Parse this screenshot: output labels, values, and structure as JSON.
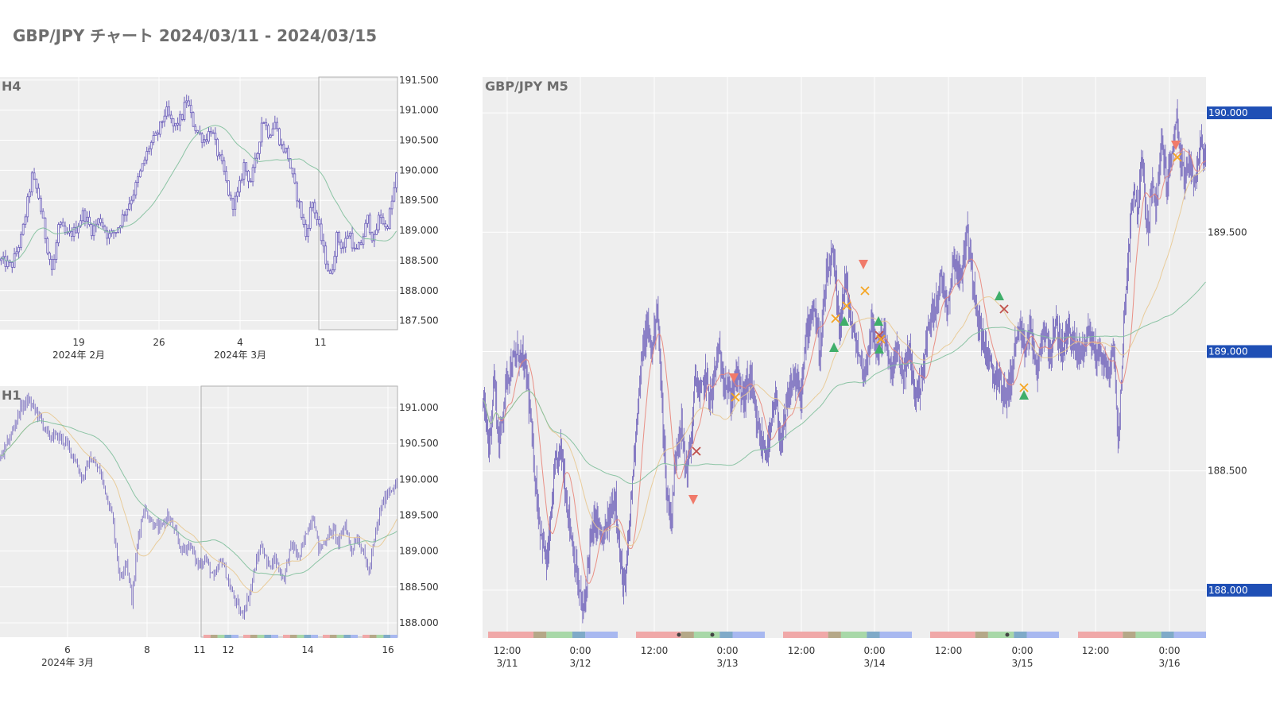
{
  "page": {
    "title": "GBP/JPY チャート 2024/03/11 - 2024/03/15"
  },
  "colors": {
    "candle": "#6a5cb8",
    "plot_bg": "#eeeeee",
    "grid": "#ffffff",
    "ma_fast": "#e8857a",
    "ma_mid": "#e8c890",
    "ma_slow": "#7fbf9b",
    "buy_marker": "#3fae6a",
    "sell_marker": "#f07a6a",
    "exit_marker": "#f5a623",
    "cross_marker": "#c0504d",
    "price_box": "#1f4fb5",
    "session_colors": [
      "#f0a8a8",
      "#b5a888",
      "#a8d8a8",
      "#7faac8",
      "#a8b8f0"
    ]
  },
  "chart_data": [
    {
      "id": "h4",
      "type": "candlestick",
      "title": "H4",
      "x_ticks": [
        "19",
        "26",
        "4",
        "11"
      ],
      "x_ticks_row2": [
        "2024年 2月",
        "2024年 3月"
      ],
      "y_ticks": [
        "191.500",
        "191.000",
        "190.500",
        "190.000",
        "189.500",
        "189.000",
        "188.500",
        "188.000",
        "187.500"
      ],
      "ylim": [
        187.35,
        191.55
      ],
      "highlight_range": [
        "3/11",
        "3/15"
      ],
      "waypoints": [
        [
          0,
          188.5
        ],
        [
          5,
          188.4
        ],
        [
          10,
          188.9
        ],
        [
          15,
          189.9
        ],
        [
          18,
          189.6
        ],
        [
          22,
          188.8
        ],
        [
          25,
          188.3
        ],
        [
          28,
          189.1
        ],
        [
          32,
          188.9
        ],
        [
          36,
          189.0
        ],
        [
          40,
          189.3
        ],
        [
          44,
          189.0
        ],
        [
          48,
          189.2
        ],
        [
          52,
          188.9
        ],
        [
          56,
          189.0
        ],
        [
          60,
          189.3
        ],
        [
          64,
          189.6
        ],
        [
          68,
          190.0
        ],
        [
          72,
          190.4
        ],
        [
          76,
          190.6
        ],
        [
          80,
          191.0
        ],
        [
          84,
          190.7
        ],
        [
          88,
          190.9
        ],
        [
          90,
          191.2
        ],
        [
          93,
          190.8
        ],
        [
          96,
          190.6
        ],
        [
          99,
          190.5
        ],
        [
          102,
          190.7
        ],
        [
          105,
          190.3
        ],
        [
          108,
          190.0
        ],
        [
          112,
          189.4
        ],
        [
          115,
          189.6
        ],
        [
          118,
          190.1
        ],
        [
          121,
          189.8
        ],
        [
          124,
          190.2
        ],
        [
          127,
          190.9
        ],
        [
          130,
          190.6
        ],
        [
          133,
          190.8
        ],
        [
          136,
          190.4
        ],
        [
          139,
          190.3
        ],
        [
          142,
          189.8
        ],
        [
          145,
          189.4
        ],
        [
          148,
          188.9
        ],
        [
          151,
          189.5
        ],
        [
          154,
          189.1
        ],
        [
          157,
          188.6
        ],
        [
          160,
          188.2
        ],
        [
          163,
          188.9
        ],
        [
          166,
          188.7
        ],
        [
          169,
          189.0
        ],
        [
          172,
          188.6
        ],
        [
          175,
          188.8
        ],
        [
          178,
          189.2
        ],
        [
          181,
          188.8
        ],
        [
          184,
          189.3
        ],
        [
          187,
          189.0
        ],
        [
          190,
          189.5
        ],
        [
          192,
          189.9
        ]
      ]
    },
    {
      "id": "h1",
      "type": "candlestick",
      "title": "H1",
      "x_ticks": [
        "6",
        "8",
        "11",
        "12",
        "14",
        "16"
      ],
      "x_ticks_row2": [
        "2024年 3月"
      ],
      "y_ticks": [
        "191.000",
        "190.500",
        "190.000",
        "189.500",
        "189.000",
        "188.500",
        "188.000"
      ],
      "ylim": [
        187.8,
        191.3
      ],
      "highlight_range": [
        "3/11",
        "3/16"
      ],
      "waypoints": [
        [
          0,
          190.3
        ],
        [
          10,
          190.6
        ],
        [
          20,
          191.0
        ],
        [
          28,
          191.1
        ],
        [
          38,
          190.9
        ],
        [
          48,
          190.6
        ],
        [
          58,
          190.6
        ],
        [
          66,
          190.5
        ],
        [
          74,
          190.3
        ],
        [
          82,
          190.0
        ],
        [
          90,
          190.3
        ],
        [
          100,
          190.1
        ],
        [
          106,
          189.8
        ],
        [
          112,
          189.5
        ],
        [
          120,
          188.6
        ],
        [
          126,
          188.9
        ],
        [
          132,
          188.3
        ],
        [
          138,
          189.2
        ],
        [
          144,
          189.6
        ],
        [
          152,
          189.4
        ],
        [
          160,
          189.3
        ],
        [
          168,
          189.5
        ],
        [
          174,
          189.3
        ],
        [
          182,
          189.0
        ],
        [
          190,
          189.1
        ],
        [
          198,
          188.8
        ],
        [
          206,
          188.9
        ],
        [
          214,
          188.6
        ],
        [
          222,
          188.9
        ],
        [
          230,
          188.5
        ],
        [
          236,
          188.3
        ],
        [
          242,
          188.1
        ],
        [
          250,
          188.4
        ],
        [
          256,
          188.8
        ],
        [
          262,
          189.1
        ],
        [
          268,
          188.8
        ],
        [
          276,
          188.9
        ],
        [
          284,
          188.6
        ],
        [
          292,
          189.1
        ],
        [
          300,
          188.9
        ],
        [
          308,
          189.3
        ],
        [
          314,
          189.5
        ],
        [
          320,
          189.0
        ],
        [
          328,
          189.2
        ],
        [
          334,
          189.3
        ],
        [
          340,
          189.1
        ],
        [
          346,
          189.4
        ],
        [
          352,
          189.0
        ],
        [
          358,
          189.2
        ],
        [
          364,
          189.0
        ],
        [
          370,
          188.7
        ],
        [
          376,
          189.2
        ],
        [
          382,
          189.6
        ],
        [
          388,
          189.8
        ],
        [
          394,
          189.9
        ],
        [
          398,
          189.9
        ]
      ]
    },
    {
      "id": "m5",
      "type": "candlestick",
      "title": "GBP/JPY M5",
      "x_ticks": [
        "12:00",
        "0:00",
        "12:00",
        "0:00",
        "12:00",
        "0:00",
        "12:00",
        "0:00",
        "12:00",
        "0:00"
      ],
      "x_ticks_row2": [
        "3/11",
        "3/12",
        "3/13",
        "3/14",
        "3/15",
        "3/16"
      ],
      "y_ticks": [
        "190.000",
        "189.500",
        "189.000",
        "188.500",
        "188.000"
      ],
      "price_boxes": [
        "190.000",
        "189.000",
        "188.000"
      ],
      "ylim": [
        187.8,
        190.15
      ],
      "waypoints": [
        [
          0,
          188.8
        ],
        [
          8,
          188.6
        ],
        [
          14,
          188.9
        ],
        [
          20,
          188.6
        ],
        [
          30,
          188.9
        ],
        [
          45,
          189.0
        ],
        [
          55,
          188.9
        ],
        [
          62,
          188.6
        ],
        [
          70,
          188.3
        ],
        [
          80,
          188.1
        ],
        [
          90,
          188.5
        ],
        [
          98,
          188.6
        ],
        [
          104,
          188.4
        ],
        [
          112,
          188.2
        ],
        [
          120,
          188.0
        ],
        [
          126,
          187.9
        ],
        [
          134,
          188.2
        ],
        [
          142,
          188.3
        ],
        [
          150,
          188.2
        ],
        [
          158,
          188.3
        ],
        [
          166,
          188.4
        ],
        [
          172,
          188.1
        ],
        [
          178,
          188.0
        ],
        [
          184,
          188.3
        ],
        [
          192,
          188.7
        ],
        [
          200,
          189.0
        ],
        [
          206,
          189.1
        ],
        [
          212,
          189.0
        ],
        [
          218,
          189.2
        ],
        [
          224,
          188.8
        ],
        [
          230,
          188.4
        ],
        [
          236,
          188.3
        ],
        [
          242,
          188.6
        ],
        [
          248,
          188.7
        ],
        [
          254,
          188.5
        ],
        [
          260,
          188.6
        ],
        [
          266,
          188.9
        ],
        [
          272,
          188.8
        ],
        [
          278,
          188.9
        ],
        [
          286,
          188.8
        ],
        [
          294,
          189.0
        ],
        [
          302,
          188.9
        ],
        [
          310,
          188.8
        ],
        [
          318,
          188.9
        ],
        [
          326,
          188.8
        ],
        [
          334,
          188.9
        ],
        [
          342,
          188.7
        ],
        [
          350,
          188.6
        ],
        [
          358,
          188.6
        ],
        [
          366,
          188.8
        ],
        [
          374,
          188.6
        ],
        [
          382,
          188.8
        ],
        [
          390,
          188.9
        ],
        [
          398,
          188.8
        ],
        [
          406,
          189.1
        ],
        [
          414,
          189.2
        ],
        [
          422,
          189.0
        ],
        [
          430,
          189.3
        ],
        [
          438,
          189.4
        ],
        [
          446,
          189.1
        ],
        [
          454,
          189.3
        ],
        [
          462,
          189.1
        ],
        [
          470,
          189.0
        ],
        [
          478,
          188.9
        ],
        [
          486,
          189.1
        ],
        [
          494,
          189.0
        ],
        [
          502,
          189.1
        ],
        [
          510,
          188.9
        ],
        [
          518,
          189.0
        ],
        [
          526,
          188.9
        ],
        [
          534,
          189.0
        ],
        [
          542,
          188.8
        ],
        [
          550,
          188.9
        ],
        [
          558,
          189.1
        ],
        [
          566,
          189.2
        ],
        [
          574,
          189.3
        ],
        [
          582,
          189.2
        ],
        [
          590,
          189.4
        ],
        [
          598,
          189.3
        ],
        [
          606,
          189.5
        ],
        [
          614,
          189.3
        ],
        [
          622,
          189.1
        ],
        [
          630,
          189.0
        ],
        [
          638,
          188.9
        ],
        [
          646,
          188.9
        ],
        [
          654,
          188.8
        ],
        [
          662,
          188.9
        ],
        [
          670,
          189.1
        ],
        [
          678,
          189.0
        ],
        [
          686,
          189.1
        ],
        [
          694,
          188.9
        ],
        [
          702,
          189.1
        ],
        [
          710,
          189.0
        ],
        [
          718,
          189.1
        ],
        [
          726,
          189.0
        ],
        [
          734,
          189.1
        ],
        [
          742,
          189.0
        ],
        [
          750,
          189.0
        ],
        [
          758,
          189.1
        ],
        [
          766,
          189.0
        ],
        [
          774,
          189.0
        ],
        [
          782,
          188.9
        ],
        [
          790,
          189.0
        ],
        [
          796,
          188.6
        ],
        [
          802,
          189.1
        ],
        [
          808,
          189.4
        ],
        [
          814,
          189.7
        ],
        [
          820,
          189.6
        ],
        [
          826,
          189.8
        ],
        [
          832,
          189.5
        ],
        [
          838,
          189.7
        ],
        [
          844,
          189.6
        ],
        [
          850,
          189.9
        ],
        [
          856,
          189.7
        ],
        [
          862,
          189.8
        ],
        [
          868,
          190.0
        ],
        [
          874,
          189.8
        ],
        [
          880,
          189.7
        ],
        [
          886,
          189.8
        ],
        [
          892,
          189.7
        ],
        [
          898,
          189.9
        ],
        [
          905,
          189.8
        ]
      ]
    }
  ]
}
